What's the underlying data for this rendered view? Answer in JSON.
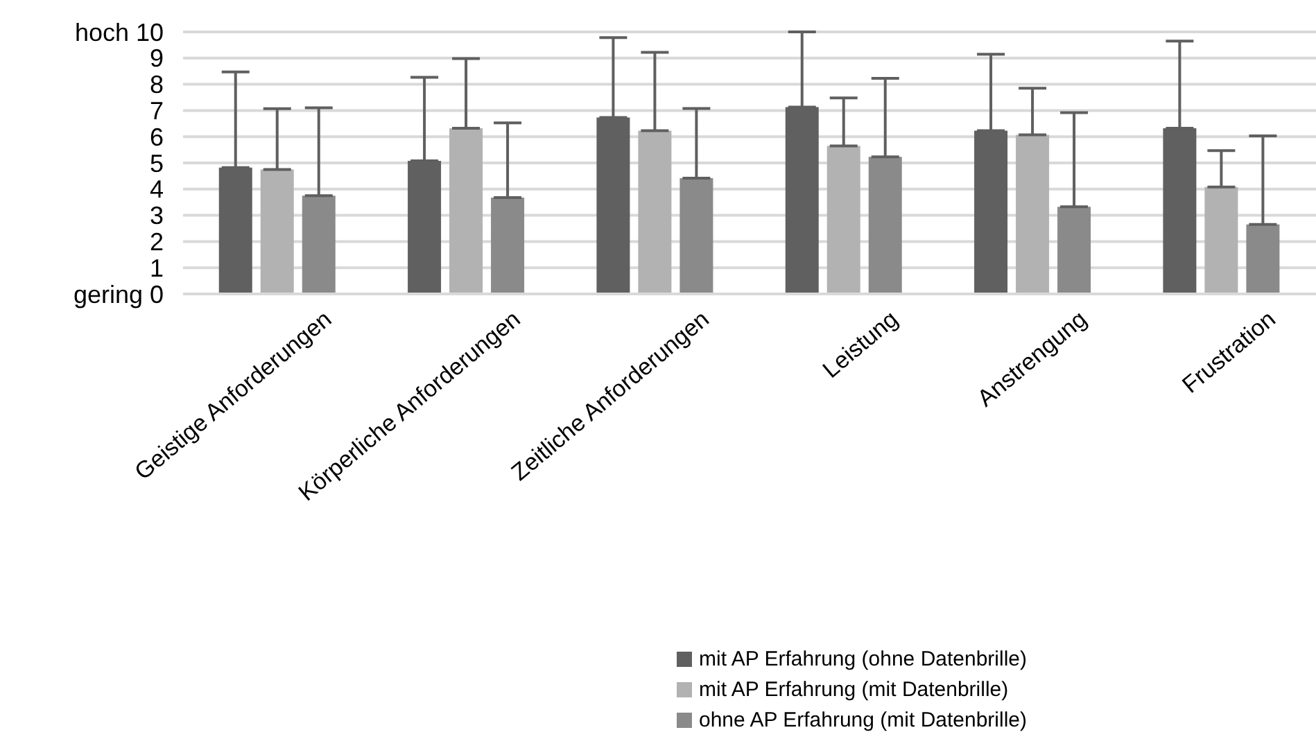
{
  "chart_data": {
    "type": "bar",
    "categories": [
      "Geistige Anforderungen",
      "Körperliche Anforderungen",
      "Zeitliche Anforderungen",
      "Leistung",
      "Anstrengung",
      "Frustration"
    ],
    "series": [
      {
        "name": "mit AP Erfahrung (ohne Datenbrille)",
        "color": "#606060",
        "values": [
          4.82,
          5.08,
          6.73,
          7.13,
          6.23,
          6.32
        ],
        "errors": [
          [
            4.82,
            8.47
          ],
          [
            5.08,
            8.27
          ],
          [
            6.73,
            9.78
          ],
          [
            7.13,
            10
          ],
          [
            6.23,
            9.15
          ],
          [
            6.32,
            9.65
          ]
        ]
      },
      {
        "name": "mit AP Erfahrung (mit Datenbrille)",
        "color": "#b2b2b2",
        "values": [
          4.75,
          6.32,
          6.23,
          5.65,
          6.07,
          4.08
        ],
        "errors": [
          [
            4.75,
            7.07
          ],
          [
            6.32,
            8.98
          ],
          [
            6.23,
            9.22
          ],
          [
            5.65,
            7.48
          ],
          [
            6.07,
            7.85
          ],
          [
            4.08,
            5.47
          ]
        ]
      },
      {
        "name": "ohne AP Erfahrung (mit Datenbrille)",
        "color": "#8a8a8a",
        "values": [
          3.75,
          3.68,
          4.42,
          5.23,
          3.33,
          2.65
        ],
        "errors": [
          [
            3.75,
            7.1
          ],
          [
            3.68,
            6.53
          ],
          [
            4.42,
            7.08
          ],
          [
            5.23,
            8.23
          ],
          [
            3.33,
            6.92
          ],
          [
            2.65,
            6.03
          ]
        ]
      }
    ],
    "ylim": [
      0,
      10
    ],
    "yticks": [
      {
        "value": 0,
        "label": "gering 0"
      },
      1,
      2,
      3,
      4,
      5,
      6,
      7,
      8,
      {
        "value": 10,
        "label": "hoch 10"
      },
      9
    ],
    "grid": "y",
    "legend": "bottom"
  }
}
